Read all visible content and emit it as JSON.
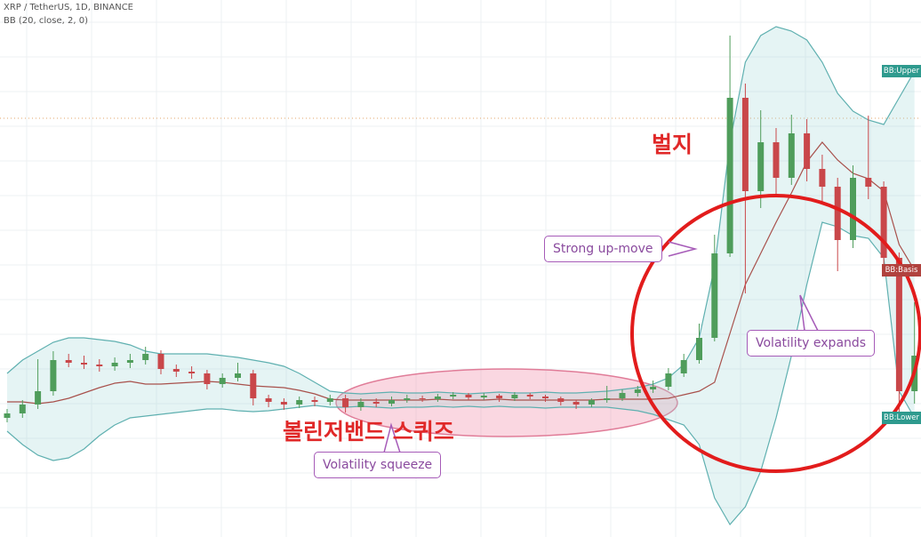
{
  "chart_data": {
    "type": "candlestick",
    "title": "XRP / TetherUS, 1D, BINANCE",
    "subtitle": "BB (20, close, 2, 0)",
    "ylim": [
      0,
      604
    ],
    "grid": true,
    "up_color": "#4f9d5b",
    "down_color": "#c9474a",
    "open": [
      134,
      139,
      149,
      164,
      199,
      196,
      194,
      192,
      196,
      199,
      206,
      189,
      186,
      184,
      172,
      179,
      184,
      156,
      152,
      149,
      154,
      152,
      156,
      146,
      152,
      150,
      154,
      156,
      155,
      158,
      160,
      157,
      159,
      156,
      160,
      158,
      156,
      152,
      149,
      154,
      156,
      162,
      166,
      169,
      184,
      199,
      224,
      319,
      494,
      389,
      444,
      404,
      454,
      414,
      394,
      334,
      404,
      394,
      314,
      164
    ],
    "high": [
      144,
      154,
      200,
      209,
      206,
      204,
      200,
      202,
      206,
      214,
      210,
      194,
      192,
      188,
      184,
      196,
      188,
      160,
      156,
      158,
      158,
      160,
      160,
      156,
      156,
      158,
      160,
      159,
      161,
      163,
      162,
      162,
      161,
      163,
      162,
      160,
      158,
      154,
      156,
      170,
      166,
      170,
      176,
      190,
      206,
      240,
      340,
      564,
      510,
      480,
      460,
      475,
      470,
      430,
      404,
      418,
      474,
      400,
      320,
      264
    ],
    "low": [
      129,
      134,
      144,
      159,
      191,
      189,
      186,
      187,
      190,
      194,
      183,
      180,
      178,
      166,
      168,
      175,
      148,
      146,
      143,
      145,
      147,
      148,
      140,
      142,
      146,
      147,
      151,
      152,
      152,
      155,
      154,
      154,
      152,
      153,
      155,
      152,
      148,
      144,
      146,
      151,
      153,
      158,
      162,
      165,
      180,
      195,
      220,
      315,
      274,
      370,
      384,
      396,
      400,
      375,
      299,
      325,
      380,
      300,
      139,
      150
    ],
    "close": [
      139,
      149,
      164,
      199,
      196,
      194,
      192,
      196,
      199,
      206,
      189,
      186,
      184,
      172,
      179,
      184,
      156,
      152,
      149,
      154,
      152,
      156,
      146,
      152,
      150,
      154,
      156,
      155,
      158,
      160,
      157,
      159,
      156,
      160,
      158,
      156,
      152,
      149,
      154,
      156,
      162,
      166,
      169,
      184,
      199,
      224,
      319,
      494,
      389,
      444,
      404,
      454,
      414,
      394,
      334,
      404,
      394,
      314,
      164,
      204
    ],
    "bands": {
      "upper": [
        184,
        199,
        209,
        219,
        224,
        224,
        222,
        220,
        216,
        209,
        206,
        206,
        206,
        206,
        204,
        202,
        199,
        196,
        192,
        184,
        174,
        164,
        162,
        161,
        162,
        163,
        162,
        162,
        163,
        162,
        161,
        162,
        163,
        162,
        162,
        163,
        162,
        162,
        163,
        164,
        166,
        168,
        172,
        179,
        194,
        224,
        304,
        444,
        534,
        564,
        574,
        569,
        559,
        534,
        499,
        479,
        469,
        464,
        494,
        524
      ],
      "basis": [
        152,
        152,
        150,
        152,
        156,
        162,
        168,
        173,
        175,
        172,
        172,
        173,
        174,
        175,
        174,
        172,
        170,
        169,
        168,
        165,
        161,
        155,
        154,
        154,
        154,
        154,
        154,
        154,
        155,
        154,
        154,
        154,
        155,
        154,
        154,
        154,
        154,
        154,
        154,
        155,
        155,
        155,
        155,
        156,
        160,
        164,
        174,
        229,
        284,
        319,
        354,
        387,
        422,
        444,
        424,
        409,
        403,
        389,
        329,
        300
      ],
      "lower": [
        119,
        104,
        92,
        86,
        89,
        99,
        114,
        126,
        134,
        136,
        138,
        140,
        142,
        144,
        144,
        142,
        141,
        142,
        144,
        146,
        148,
        146,
        146,
        147,
        146,
        145,
        146,
        146,
        147,
        146,
        147,
        146,
        147,
        146,
        146,
        145,
        146,
        146,
        146,
        146,
        144,
        142,
        138,
        132,
        126,
        104,
        44,
        14,
        34,
        74,
        134,
        204,
        284,
        354,
        349,
        339,
        336,
        314,
        164,
        134
      ],
      "upper_label": "BB:Upper",
      "basis_label": "BB:Basis",
      "lower_label": "BB:Lower",
      "upper_color": "#5fb0b0",
      "basis_color": "#a8514c",
      "lower_color": "#5fb0b0"
    },
    "annotations": {
      "bulge": "벌지",
      "squeeze_kr": "볼린저밴드 스퀴즈",
      "strong_up": "Strong up-move",
      "squeeze": "Volatility squeeze",
      "expands": "Volatility expands"
    }
  }
}
